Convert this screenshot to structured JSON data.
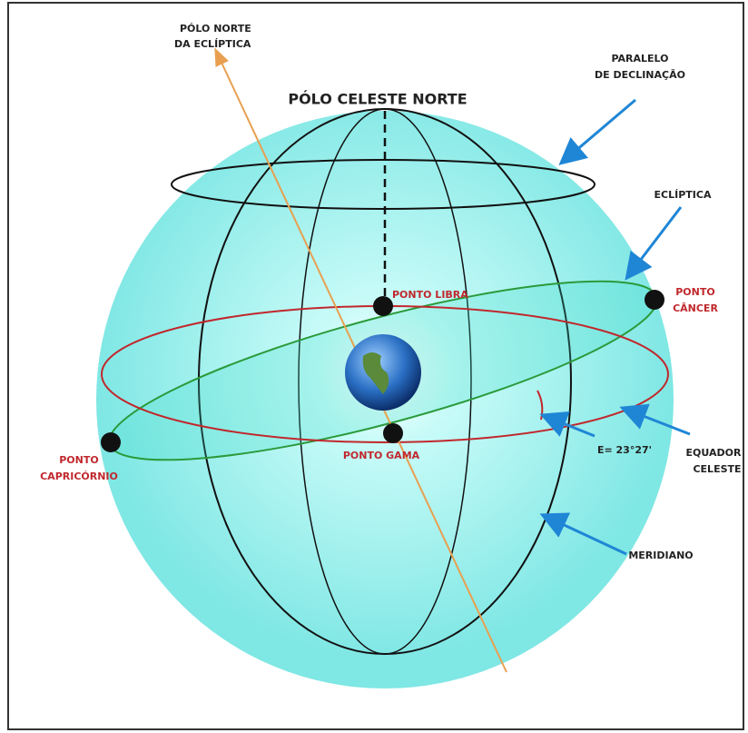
{
  "labels": [
    {
      "lines": [
        "PÓLO NORTE",
        "DA ECLÍPTICA"
      ]
    },
    {
      "lines": [
        "PÓLO CELESTE NORTE"
      ]
    },
    {
      "lines": [
        "PARALELO",
        "DE DECLINAÇÃO"
      ]
    },
    {
      "lines": [
        "ECLÍPTICA"
      ]
    },
    {
      "lines": [
        "PONTO LIBRA"
      ]
    },
    {
      "lines": [
        "PONTO",
        "CÂNCER"
      ]
    },
    {
      "lines": [
        "PONTO",
        "CAPRICÓRNIO"
      ]
    },
    {
      "lines": [
        "PONTO GAMA"
      ]
    },
    {
      "lines": [
        "E= 23°27'"
      ]
    },
    {
      "lines": [
        "EQUADOR",
        "CELESTE"
      ]
    },
    {
      "lines": [
        "MERIDIANO"
      ]
    }
  ]
}
